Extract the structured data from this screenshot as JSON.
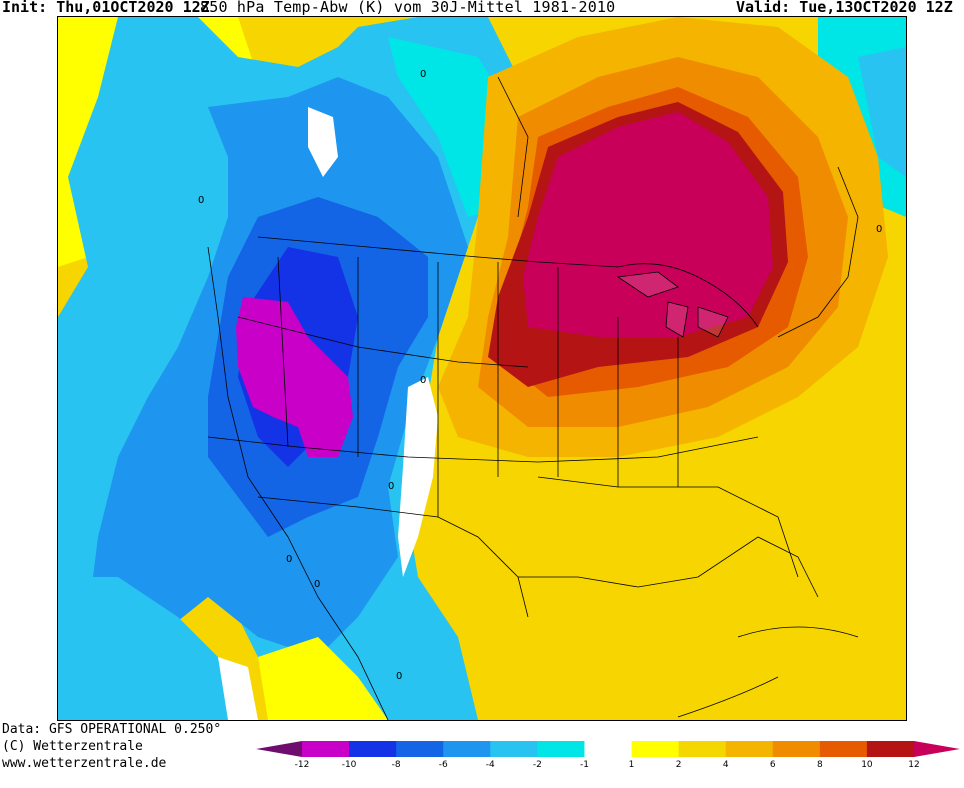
{
  "header": {
    "init_label": "Init:",
    "init_value": "Thu,01OCT2020 12Z",
    "variable": "850 hPa Temp-Abw (K) vom 30J-Mittel 1981-2010",
    "valid_label": "Valid:",
    "valid_value": "Tue,13OCT2020 12Z"
  },
  "footer": {
    "data_source": "Data: GFS OPERATIONAL 0.250°",
    "copyright": "(C) Wetterzentrale",
    "url": "www.wetterzentrale.de"
  },
  "colorbar": {
    "ticks": [
      "-12",
      "-10",
      "-8",
      "-6",
      "-4",
      "-2",
      "-1",
      "1",
      "2",
      "4",
      "6",
      "8",
      "10",
      "12"
    ],
    "colors": [
      "#6e0d6e",
      "#c800c8",
      "#1432e6",
      "#1464e6",
      "#1e96f0",
      "#28c3f0",
      "#00e6e6",
      "#ffffff",
      "#ffff00",
      "#f5d700",
      "#f5b400",
      "#f08c00",
      "#e65a00",
      "#b41414",
      "#c8005a"
    ]
  },
  "map": {
    "region": "North America",
    "contour_labels": [
      "0",
      "0",
      "0",
      "0",
      "0",
      "0",
      "0",
      "0"
    ]
  }
}
